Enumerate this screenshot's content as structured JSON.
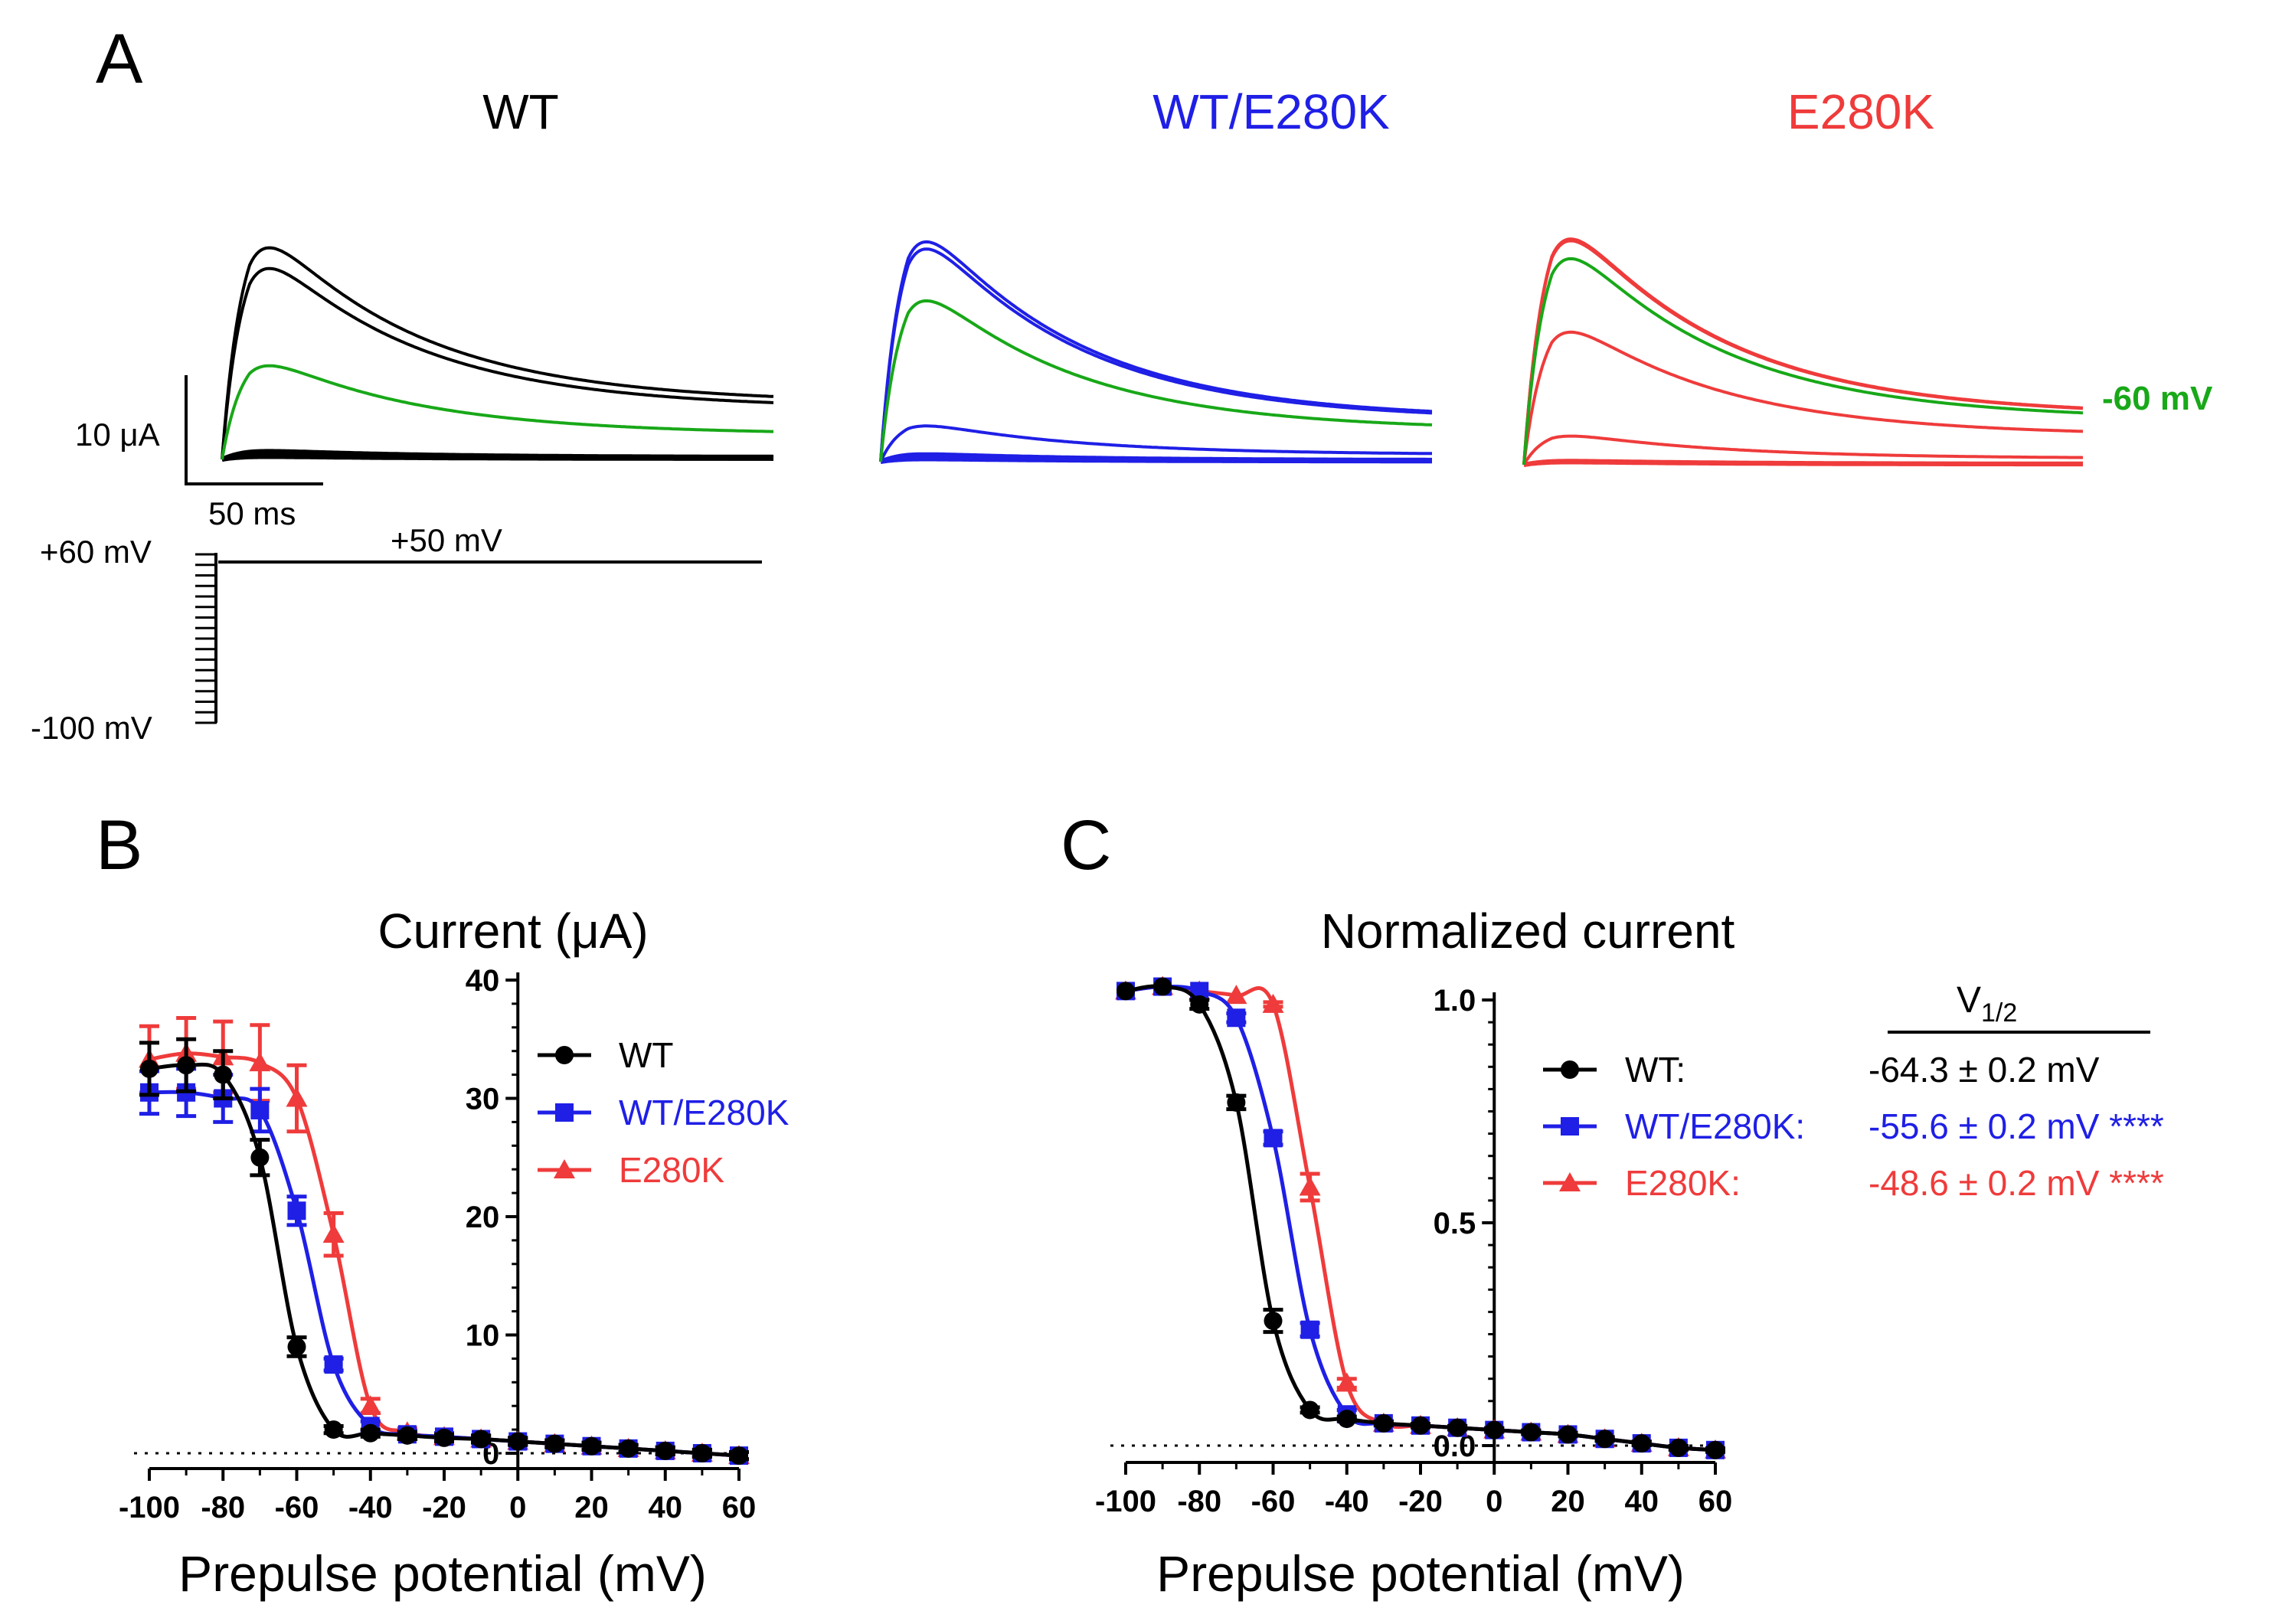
{
  "panel_a": {
    "label": "A",
    "titles": [
      {
        "text": "WT",
        "color": "#000000"
      },
      {
        "text": "WT/E280K",
        "color": "#1f1fe6"
      },
      {
        "text": "E280K",
        "color": "#ef3b3b"
      }
    ],
    "traces": [
      {
        "name": "WT",
        "color": "#000000",
        "peaks_uA": [
          23.5,
          21.2,
          0.9,
          0.6,
          0.4,
          0.3
        ],
        "highlight_peak_uA": 10.4,
        "tail_fraction": 0.22
      },
      {
        "name": "WT/E280K",
        "color": "#1f1fe6",
        "peaks_uA": [
          24.6,
          23.8,
          4.0,
          0.8,
          0.5,
          0.3
        ],
        "highlight_peak_uA": 18.0,
        "tail_fraction": 0.16
      },
      {
        "name": "E280K",
        "color": "#ef3b3b",
        "peaks_uA": [
          25.2,
          25.0,
          14.8,
          3.2,
          0.4,
          0.3
        ],
        "highlight_peak_uA": 23.0,
        "tail_fraction": 0.18
      }
    ],
    "highlight_color": "#18a818",
    "highlight_label": "-60 mV",
    "scale_bar": {
      "current": "10 μA",
      "time": "50 ms"
    },
    "protocol": {
      "high": "+60 mV",
      "low": "-100 mV",
      "test": "+50 mV",
      "steps": 17
    }
  },
  "panel_b": {
    "label": "B",
    "title": "Current (μA)",
    "y_ticks": [
      "0",
      "10",
      "20",
      "30",
      "40"
    ]
  },
  "panel_c": {
    "label": "C",
    "title": "Normalized current",
    "y_ticks": [
      "0.0",
      "0.5",
      "1.0"
    ],
    "v_half_header": "V1/2",
    "v_half_base": "V",
    "v_half_sub": "1/2"
  },
  "x_axis": {
    "title": "Prepulse potential (mV)",
    "ticks": [
      "-100",
      "-80",
      "-60",
      "-40",
      "-20",
      "0",
      "20",
      "40",
      "60"
    ]
  },
  "legend": [
    {
      "name": "WT",
      "label_c": "WT:",
      "marker": "circle",
      "color": "#000000",
      "v_half": "-64.3 ± 0.2 mV"
    },
    {
      "name": "WT/E280K",
      "label_c": "WT/E280K:",
      "marker": "square",
      "color": "#1f1fe6",
      "v_half": "-55.6 ± 0.2 mV ****"
    },
    {
      "name": "E280K",
      "label_c": "E280K:",
      "marker": "triangle",
      "color": "#ef3b3b",
      "v_half": "-48.6 ± 0.2 mV ****"
    }
  ],
  "chart_data": [
    {
      "type": "scatter",
      "title": "Current (μA)",
      "xlabel": "Prepulse potential (mV)",
      "ylabel": "Current (μA)",
      "xlim": [
        -100,
        60
      ],
      "ylim": [
        0,
        40
      ],
      "x": [
        -100,
        -90,
        -80,
        -70,
        -60,
        -50,
        -40,
        -30,
        -20,
        -10,
        0,
        10,
        20,
        30,
        40,
        50,
        60
      ],
      "series": [
        {
          "name": "WT",
          "color": "#000000",
          "marker": "circle",
          "values": [
            32.5,
            32.8,
            32.0,
            25.0,
            9.0,
            2.0,
            1.7,
            1.5,
            1.3,
            1.2,
            1.0,
            0.8,
            0.6,
            0.4,
            0.2,
            0.0,
            -0.2
          ],
          "errors": [
            2.2,
            2.2,
            2.0,
            1.5,
            0.8,
            0.3,
            0.3,
            0.3,
            0.3,
            0.3,
            0.3,
            0.3,
            0.3,
            0.3,
            0.3,
            0.3,
            0.3
          ]
        },
        {
          "name": "WT/E280K",
          "color": "#1f1fe6",
          "marker": "square",
          "values": [
            30.5,
            30.5,
            30.0,
            29.0,
            20.5,
            7.5,
            2.3,
            1.6,
            1.4,
            1.2,
            1.0,
            0.8,
            0.6,
            0.4,
            0.2,
            0.0,
            -0.2
          ],
          "errors": [
            1.8,
            2.0,
            2.0,
            1.8,
            1.2,
            0.5,
            0.4,
            0.3,
            0.3,
            0.3,
            0.3,
            0.3,
            0.3,
            0.3,
            0.3,
            0.3,
            0.3
          ]
        },
        {
          "name": "E280K",
          "color": "#ef3b3b",
          "marker": "triangle",
          "values": [
            33.3,
            33.8,
            33.5,
            33.0,
            30.0,
            18.5,
            4.0,
            1.8,
            1.4,
            1.2,
            1.0,
            0.8,
            0.6,
            0.4,
            0.2,
            0.0,
            -0.2
          ],
          "errors": [
            2.8,
            3.0,
            3.0,
            3.2,
            2.8,
            1.8,
            0.6,
            0.3,
            0.3,
            0.3,
            0.3,
            0.3,
            0.3,
            0.3,
            0.3,
            0.3,
            0.3
          ]
        }
      ]
    },
    {
      "type": "scatter",
      "title": "Normalized current",
      "xlabel": "Prepulse potential (mV)",
      "ylabel": "Normalized current",
      "xlim": [
        -100,
        60
      ],
      "ylim": [
        0,
        1.0
      ],
      "x": [
        -100,
        -90,
        -80,
        -70,
        -60,
        -50,
        -40,
        -30,
        -20,
        -10,
        0,
        10,
        20,
        30,
        40,
        50,
        60
      ],
      "series": [
        {
          "name": "WT",
          "color": "#000000",
          "marker": "circle",
          "v_half": -64.3,
          "values": [
            1.02,
            1.03,
            0.99,
            0.77,
            0.28,
            0.08,
            0.06,
            0.05,
            0.045,
            0.04,
            0.035,
            0.03,
            0.025,
            0.015,
            0.005,
            -0.005,
            -0.01
          ],
          "errors": [
            0.0,
            0.0,
            0.01,
            0.015,
            0.025,
            0.006,
            0.005,
            0.004,
            0.004,
            0.004,
            0.004,
            0.004,
            0.004,
            0.004,
            0.004,
            0.004,
            0.004
          ]
        },
        {
          "name": "WT/E280K",
          "color": "#1f1fe6",
          "marker": "square",
          "v_half": -55.6,
          "values": [
            1.02,
            1.03,
            1.02,
            0.96,
            0.69,
            0.26,
            0.07,
            0.05,
            0.045,
            0.04,
            0.035,
            0.03,
            0.025,
            0.015,
            0.005,
            -0.005,
            -0.01
          ],
          "errors": [
            0.0,
            0.0,
            0.0,
            0.01,
            0.015,
            0.015,
            0.01,
            0.005,
            0.004,
            0.004,
            0.004,
            0.004,
            0.004,
            0.004,
            0.004,
            0.004,
            0.004
          ]
        },
        {
          "name": "E280K",
          "color": "#ef3b3b",
          "marker": "triangle",
          "v_half": -48.6,
          "values": [
            1.02,
            1.03,
            1.02,
            1.01,
            0.99,
            0.58,
            0.14,
            0.05,
            0.045,
            0.04,
            0.035,
            0.03,
            0.025,
            0.015,
            0.005,
            -0.005,
            -0.01
          ],
          "errors": [
            0.0,
            0.0,
            0.0,
            0.0,
            0.005,
            0.03,
            0.01,
            0.005,
            0.004,
            0.004,
            0.004,
            0.004,
            0.004,
            0.004,
            0.004,
            0.004,
            0.004
          ]
        }
      ]
    }
  ]
}
